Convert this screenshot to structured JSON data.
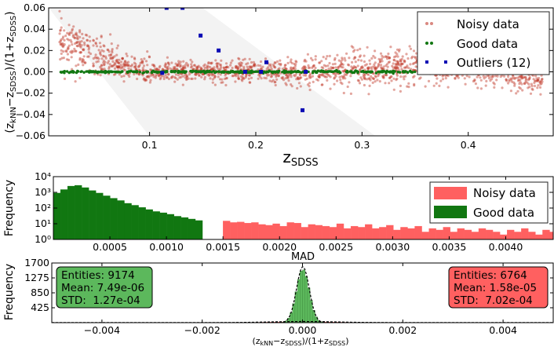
{
  "chart_data": [
    {
      "type": "scatter",
      "xlabel": "z_SDSS",
      "ylabel": "(z_kNN − z_SDSS)/(1 + z_SDSS)",
      "xlim": [
        0.005,
        0.48
      ],
      "ylim": [
        -0.06,
        0.06
      ],
      "xticks": [
        0.1,
        0.2,
        0.3,
        0.4
      ],
      "xtick_labels": [
        "0.1",
        "0.2",
        "0.3",
        "0.4"
      ],
      "yticks": [
        -0.06,
        -0.04,
        -0.02,
        0.0,
        0.02,
        0.04,
        0.06
      ],
      "ytick_labels": [
        "−0.06",
        "−0.04",
        "−0.02",
        "0.00",
        "0.02",
        "0.04",
        "0.06"
      ],
      "legend_position": "top-right",
      "series": [
        {
          "name": "Noisy data",
          "color": "#b22222"
        },
        {
          "name": "Good data",
          "color": "#117711"
        },
        {
          "name": "Outliers (12)",
          "color": "#0a0ab4"
        }
      ],
      "outliers": {
        "x": [
          0.116,
          0.131,
          0.112,
          0.148,
          0.165,
          0.19,
          0.21,
          0.205,
          0.244,
          0.376,
          0.395,
          0.247
        ],
        "y": [
          0.06,
          0.06,
          -0.001,
          0.034,
          0.02,
          0.0,
          0.009,
          0.0,
          -0.036,
          0.011,
          0.011,
          0.0
        ]
      },
      "noisy_band": {
        "x": [
          0.015,
          0.04,
          0.06,
          0.08,
          0.1,
          0.12,
          0.15,
          0.2,
          0.25,
          0.3,
          0.35,
          0.4,
          0.45,
          0.47
        ],
        "y_center": [
          0.03,
          0.02,
          0.01,
          0.004,
          0.001,
          0.0,
          0.0,
          0.0,
          0.0,
          0.003,
          0.006,
          0.005,
          -0.004,
          -0.01
        ],
        "y_spread": [
          0.018,
          0.018,
          0.016,
          0.012,
          0.01,
          0.009,
          0.009,
          0.01,
          0.012,
          0.015,
          0.015,
          0.013,
          0.012,
          0.01
        ]
      },
      "good_x_range": [
        0.015,
        0.47
      ]
    },
    {
      "type": "bar",
      "subtype": "histogram",
      "xlabel": "MAD",
      "ylabel": "Frequency",
      "yscale": "log",
      "xlim": [
        0.0,
        0.00442
      ],
      "ylim": [
        1,
        10000
      ],
      "xticks": [
        0.0005,
        0.001,
        0.0015,
        0.002,
        0.0025,
        0.003,
        0.0035,
        0.004
      ],
      "xtick_labels": [
        "0.0005",
        "0.0010",
        "0.0015",
        "0.0020",
        "0.0025",
        "0.0030",
        "0.0035",
        "0.0040"
      ],
      "ytick_labels": [
        "10⁰",
        "10¹",
        "10²",
        "10³",
        "10⁴"
      ],
      "legend_position": "top-right",
      "bin_width": 6.28e-05,
      "series": [
        {
          "name": "Good data",
          "color": "#117711",
          "x_start": 0.0,
          "values": [
            900,
            1500,
            2500,
            2800,
            2000,
            1300,
            900,
            600,
            420,
            300,
            200,
            150,
            110,
            80,
            60,
            50,
            40,
            30,
            25,
            20,
            16
          ]
        },
        {
          "name": "Noisy data",
          "color": "#ff6060",
          "x_start": 0.0015,
          "values": [
            15,
            12,
            13,
            11,
            12,
            9,
            8,
            10,
            7,
            12,
            11,
            6,
            9,
            8,
            7,
            6,
            10,
            5,
            7,
            6,
            9,
            5,
            6,
            8,
            4,
            6,
            5,
            7,
            3,
            5,
            4,
            6,
            3,
            5,
            4,
            3,
            5,
            4,
            3,
            2,
            4,
            3,
            5,
            3,
            2,
            4,
            3
          ]
        }
      ]
    },
    {
      "type": "bar",
      "subtype": "histogram",
      "xlabel": "(z_kNN − z_SDSS)/(1 + z_SDSS)",
      "ylabel": "Frequency",
      "xlim": [
        -0.005,
        0.005
      ],
      "ylim": [
        0,
        1700
      ],
      "xticks": [
        -0.004,
        -0.002,
        0.0,
        0.002,
        0.004
      ],
      "xtick_labels": [
        "−0.004",
        "−0.002",
        "0.000",
        "0.002",
        "0.004"
      ],
      "yticks": [
        425,
        850,
        1275,
        1700
      ],
      "ytick_labels": [
        "425",
        "850",
        "1275",
        "1700"
      ],
      "series": [
        {
          "name": "Good data",
          "color": "#5cb85c",
          "mean": 7.49e-06,
          "std": 0.000127,
          "peak": 1520
        },
        {
          "name": "Noisy data",
          "color": "#ff6060",
          "mean": 1.58e-05,
          "std": 0.000702,
          "peak": 30
        }
      ],
      "stats": {
        "good": {
          "entities": "Entities: 9174",
          "mean": "Mean: 7.49e-06",
          "std": "STD:  1.27e-04"
        },
        "noisy": {
          "entities": "Entities: 6764",
          "mean": "Mean: 1.58e-05",
          "std": "STD:  7.02e-04"
        }
      }
    }
  ]
}
